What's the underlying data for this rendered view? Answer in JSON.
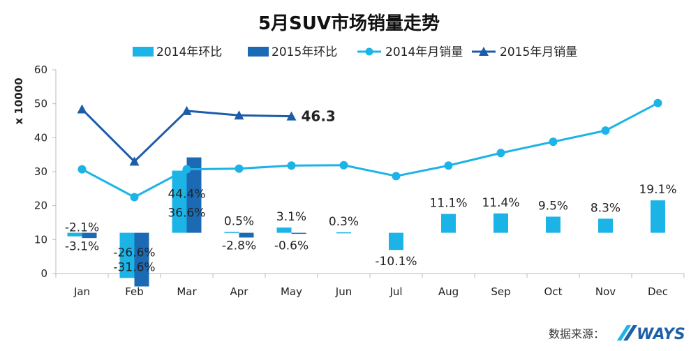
{
  "chart_data": {
    "type": "bar+line",
    "title": "5月SUV市场销量走势",
    "ylabel": "x 10000",
    "ylim": [
      0,
      60
    ],
    "yticks": [
      0,
      10,
      20,
      30,
      40,
      50,
      60
    ],
    "bar_baseline": 12,
    "categories": [
      "Jan",
      "Feb",
      "Mar",
      "Apr",
      "May",
      "Jun",
      "Jul",
      "Aug",
      "Sep",
      "Oct",
      "Nov",
      "Dec"
    ],
    "bars": [
      {
        "name": "2014年环比",
        "color": "#1cb3e6",
        "pct_values": [
          -2.1,
          -26.6,
          36.6,
          0.5,
          3.1,
          0.3,
          -10.1,
          11.1,
          11.4,
          9.5,
          8.3,
          19.1
        ],
        "labels": [
          "-2.1%",
          "-26.6%",
          "36.6%",
          "0.5%",
          "3.1%",
          "0.3%",
          "-10.1%",
          "11.1%",
          "11.4%",
          "9.5%",
          "8.3%",
          "19.1%"
        ]
      },
      {
        "name": "2015年环比",
        "color": "#1d6ab4",
        "pct_values": [
          -3.1,
          -31.6,
          44.4,
          -2.8,
          -0.6
        ],
        "labels": [
          "-3.1%",
          "-31.6%",
          "44.4%",
          "-2.8%",
          "-0.6%"
        ]
      }
    ],
    "lines": [
      {
        "name": "2014年月销量",
        "color": "#1cb3e6",
        "marker": "circle",
        "values": [
          30.7,
          22.5,
          30.7,
          30.9,
          31.8,
          31.9,
          28.7,
          31.8,
          35.5,
          38.8,
          42.1,
          50.2
        ]
      },
      {
        "name": "2015年月销量",
        "color": "#1d5ca8",
        "marker": "triangle",
        "values": [
          48.4,
          33.0,
          47.9,
          46.6,
          46.3
        ],
        "end_label": "46.3"
      }
    ],
    "legend": [
      "2014年环比",
      "2015年环比",
      "2014年月销量",
      "2015年月销量"
    ],
    "legend_position": "top"
  },
  "footer": {
    "source_label": "数据来源：",
    "logo_text": "WAYS"
  }
}
